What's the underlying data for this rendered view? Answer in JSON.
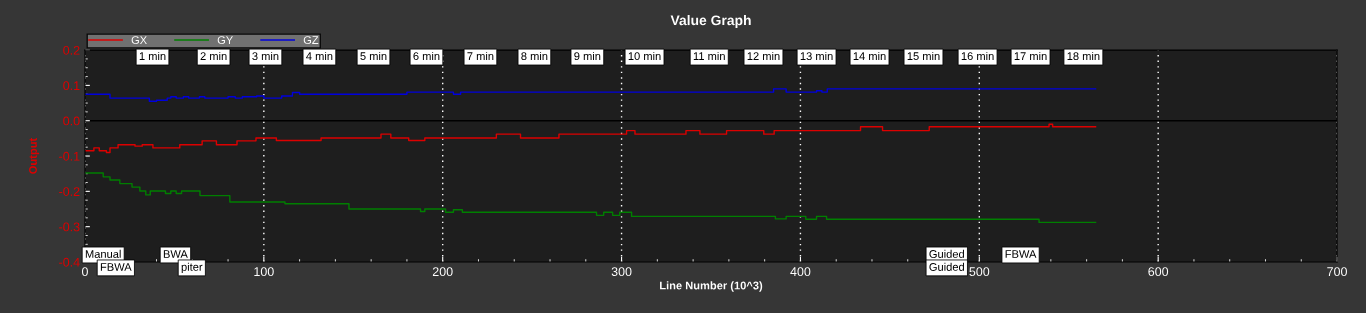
{
  "chart_data": {
    "type": "step",
    "title": "Value Graph",
    "xlabel": "Line Number (10^3)",
    "ylabel": "Output",
    "xlim": [
      0,
      700
    ],
    "xticks": [
      0,
      100,
      200,
      300,
      400,
      500,
      600,
      700
    ],
    "ylim": [
      -0.4,
      0.2
    ],
    "yticks": [
      -0.4,
      -0.3,
      -0.2,
      -0.1,
      {
        "value": 0,
        "label": "0.0"
      },
      0.1,
      0.2
    ],
    "grid": "x",
    "legend": "top left",
    "ref_lines": [
      {
        "axis": "y",
        "value": 0,
        "color": "#000000"
      }
    ],
    "series": [
      {
        "name": "GX",
        "color": "#dd0000",
        "x": [
          0,
          5,
          8,
          12,
          14,
          18.5,
          28,
          32,
          38,
          53,
          65.5,
          73.5,
          85,
          95.6,
          107,
          132,
          165.5,
          171,
          181,
          190,
          230,
          243.5,
          265,
          302.8,
          307.5,
          336,
          343.8,
          358.7,
          379.5,
          385.3,
          433.6,
          445.9,
          472,
          539,
          541,
          565
        ],
        "values": [
          -0.085,
          -0.077,
          -0.085,
          -0.09,
          -0.077,
          -0.068,
          -0.072,
          -0.068,
          -0.077,
          -0.068,
          -0.057,
          -0.068,
          -0.057,
          -0.049,
          -0.056,
          -0.049,
          -0.038,
          -0.049,
          -0.056,
          -0.049,
          -0.038,
          -0.049,
          -0.038,
          -0.028,
          -0.038,
          -0.028,
          -0.038,
          -0.028,
          -0.038,
          -0.028,
          -0.017,
          -0.028,
          -0.017,
          -0.01,
          -0.017,
          -0.017
        ]
      },
      {
        "name": "GY",
        "color": "#007f00",
        "x": [
          0,
          10.2,
          14,
          19.5,
          26.3,
          30.7,
          34,
          36.5,
          45,
          48,
          51,
          54,
          64.3,
          81,
          111.8,
          147.6,
          187.6,
          190,
          201.6,
          206,
          211,
          286,
          290,
          295,
          299,
          305.6,
          386,
          392,
          403,
          409,
          414.6,
          533.4,
          565
        ],
        "values": [
          -0.148,
          -0.159,
          -0.168,
          -0.178,
          -0.188,
          -0.199,
          -0.21,
          -0.199,
          -0.206,
          -0.199,
          -0.206,
          -0.199,
          -0.212,
          -0.23,
          -0.235,
          -0.25,
          -0.257,
          -0.25,
          -0.259,
          -0.252,
          -0.259,
          -0.268,
          -0.259,
          -0.268,
          -0.259,
          -0.271,
          -0.278,
          -0.271,
          -0.279,
          -0.271,
          -0.279,
          -0.288,
          -0.288
        ]
      },
      {
        "name": "GZ",
        "color": "#0000dd",
        "x": [
          0,
          14,
          36,
          40,
          46,
          48,
          51,
          55,
          58,
          64,
          67,
          80,
          84,
          88,
          96,
          100,
          110,
          116,
          120,
          180,
          206,
          210,
          385,
          392,
          409,
          412,
          415,
          565
        ],
        "values": [
          0.075,
          0.064,
          0.055,
          0.058,
          0.064,
          0.068,
          0.064,
          0.068,
          0.064,
          0.068,
          0.064,
          0.068,
          0.064,
          0.068,
          0.07,
          0.064,
          0.07,
          0.08,
          0.075,
          0.081,
          0.075,
          0.081,
          0.09,
          0.081,
          0.085,
          0.081,
          0.09,
          0.09
        ]
      }
    ],
    "annotations": [
      "1 min",
      "2 min",
      "3 min",
      "4 min",
      "5 min",
      "6 min",
      "7 min",
      "8 min",
      "9 min",
      "10 min",
      "11 min",
      "12 min",
      "13 min",
      "14 min",
      "15 min",
      "16 min",
      "17 min",
      "18 min",
      "Manual",
      "BWA",
      "FBWA",
      "piter",
      "Guided",
      "FBWA",
      "Guided"
    ]
  }
}
